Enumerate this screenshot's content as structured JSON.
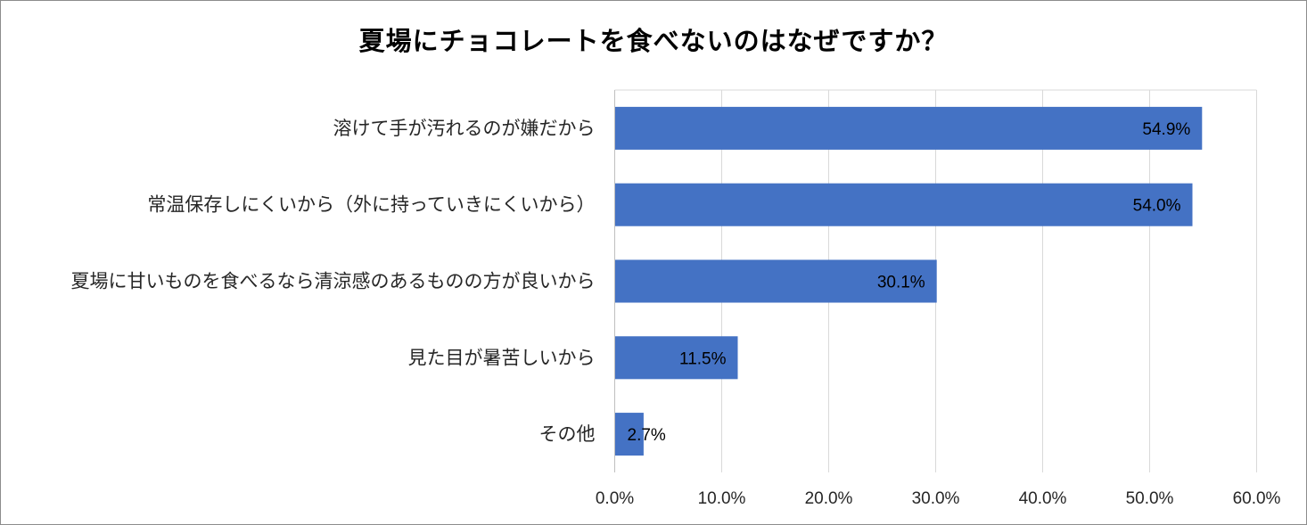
{
  "chart_data": {
    "type": "bar",
    "orientation": "horizontal",
    "title": "夏場にチョコレートを食べないのはなぜですか？",
    "categories": [
      "溶けて手が汚れるのが嫌だから",
      "常温保存しにくいから（外に持っていきにくいから）",
      "夏場に甘いものを食べるなら清涼感のあるものの方が良いから",
      "見た目が暑苦しいから",
      "その他"
    ],
    "values": [
      54.9,
      54.0,
      30.1,
      11.5,
      2.7
    ],
    "data_labels": [
      "54.9%",
      "54.0%",
      "30.1%",
      "11.5%",
      "2.7%"
    ],
    "xlim": [
      0,
      60
    ],
    "xticks": [
      0,
      10,
      20,
      30,
      40,
      50,
      60
    ],
    "xtick_labels": [
      "0.0%",
      "10.0%",
      "20.0%",
      "30.0%",
      "40.0%",
      "50.0%",
      "60.0%"
    ],
    "grid": "vertical",
    "legend": "none",
    "bar_color": "#4472c4",
    "grid_color": "#d9d9d9",
    "axis_color": "#bfbfbf"
  }
}
